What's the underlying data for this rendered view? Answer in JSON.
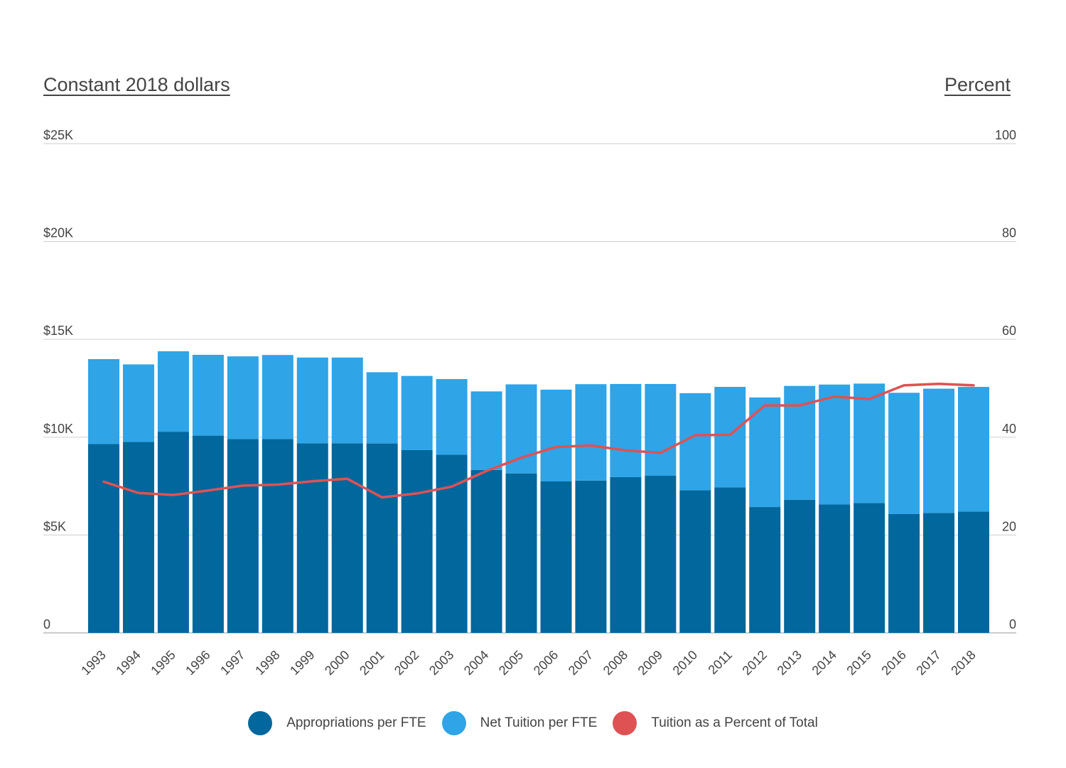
{
  "chart_data": {
    "type": "bar",
    "stacked": true,
    "left_axis_title": "Constant 2018 dollars",
    "right_axis_title": "Percent",
    "categories": [
      "1993",
      "1994",
      "1995",
      "1996",
      "1997",
      "1998",
      "1999",
      "2000",
      "2001",
      "2002",
      "2003",
      "2004",
      "2005",
      "2006",
      "2007",
      "2008",
      "2009",
      "2010",
      "2011",
      "2012",
      "2013",
      "2014",
      "2015",
      "2016",
      "2017",
      "2018"
    ],
    "series": [
      {
        "name": "Appropriations per FTE",
        "color": "#02679c",
        "axis": "left",
        "values": [
          9650,
          9760,
          10280,
          10080,
          9910,
          9910,
          9690,
          9690,
          9680,
          9340,
          9110,
          8330,
          8150,
          7740,
          7780,
          7960,
          8030,
          7290,
          7440,
          6430,
          6800,
          6560,
          6640,
          6080,
          6130,
          6200
        ]
      },
      {
        "name": "Net Tuition per FTE",
        "color": "#2fa4e7",
        "axis": "left",
        "values": [
          4340,
          3960,
          4110,
          4130,
          4220,
          4290,
          4380,
          4380,
          3640,
          3790,
          3860,
          4010,
          4550,
          4690,
          4930,
          4760,
          4690,
          4960,
          5130,
          5600,
          5820,
          6130,
          6100,
          6190,
          6350,
          6370
        ]
      },
      {
        "name": "Tuition as a Percent of Total",
        "color": "#de5254",
        "axis": "right",
        "type": "line",
        "values": [
          30.9,
          28.6,
          28.2,
          29.1,
          30.1,
          30.3,
          31.0,
          31.5,
          27.7,
          28.5,
          29.9,
          33.1,
          35.8,
          38.0,
          38.3,
          37.3,
          36.8,
          40.4,
          40.5,
          46.5,
          46.5,
          48.3,
          47.8,
          50.6,
          50.9,
          50.6
        ]
      }
    ],
    "left_axis": {
      "ylim": [
        0,
        25000
      ],
      "ticks": [
        0,
        5000,
        10000,
        15000,
        20000,
        25000
      ],
      "tick_labels": [
        "0",
        "$5K",
        "$10K",
        "$15K",
        "$20K",
        "$25K"
      ]
    },
    "right_axis": {
      "ylim": [
        0,
        100
      ],
      "ticks": [
        0,
        20,
        40,
        60,
        80,
        100
      ],
      "tick_labels": [
        "0",
        "20",
        "40",
        "60",
        "80",
        "100"
      ]
    },
    "grid": true,
    "legend_position": "bottom"
  }
}
